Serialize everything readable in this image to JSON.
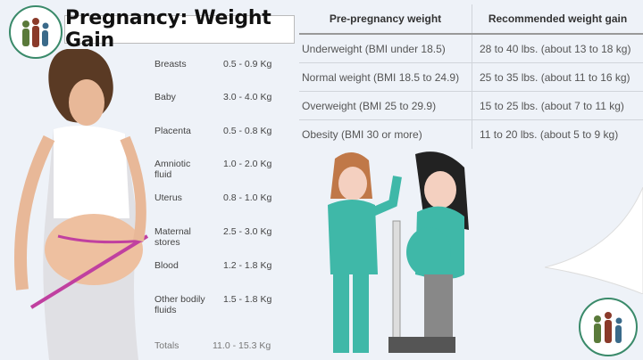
{
  "title": "Pregnancy: Weight Gain",
  "components": [
    {
      "label": "Breasts",
      "value": "0.5 - 0.9 Kg"
    },
    {
      "label": "Baby",
      "value": "3.0 - 4.0 Kg"
    },
    {
      "label": "Placenta",
      "value": "0.5 - 0.8 Kg"
    },
    {
      "label": "Amniotic fluid",
      "value": "1.0 - 2.0 Kg"
    },
    {
      "label": "Uterus",
      "value": "0.8 - 1.0 Kg"
    },
    {
      "label": "Maternal stores",
      "value": "2.5 - 3.0 Kg"
    },
    {
      "label": "Blood",
      "value": "1.2 - 1.8 Kg"
    },
    {
      "label": "Other bodily fluids",
      "value": "1.5 - 1.8 Kg"
    }
  ],
  "totals": {
    "label": "Totals",
    "value": "11.0 - 15.3 Kg"
  },
  "table": {
    "headers": [
      "Pre-pregnancy weight",
      "Recommended weight gain"
    ],
    "rows": [
      [
        "Underweight (BMI under 18.5)",
        "28 to 40 lbs. (about 13 to 18 kg)"
      ],
      [
        "Normal weight (BMI 18.5 to 24.9)",
        "25 to 35 lbs. (about 11 to 16 kg)"
      ],
      [
        "Overweight (BMI 25 to 29.9)",
        "15 to 25 lbs. (about 7 to 11 kg)"
      ],
      [
        "Obesity (BMI 30 or more)",
        "11 to 20 lbs. (about 5 to 9 kg)"
      ]
    ]
  },
  "colors": {
    "background": "#eef2f8",
    "nurse_scrubs": "#3fb8a8",
    "tape_measure": "#c040a0"
  }
}
